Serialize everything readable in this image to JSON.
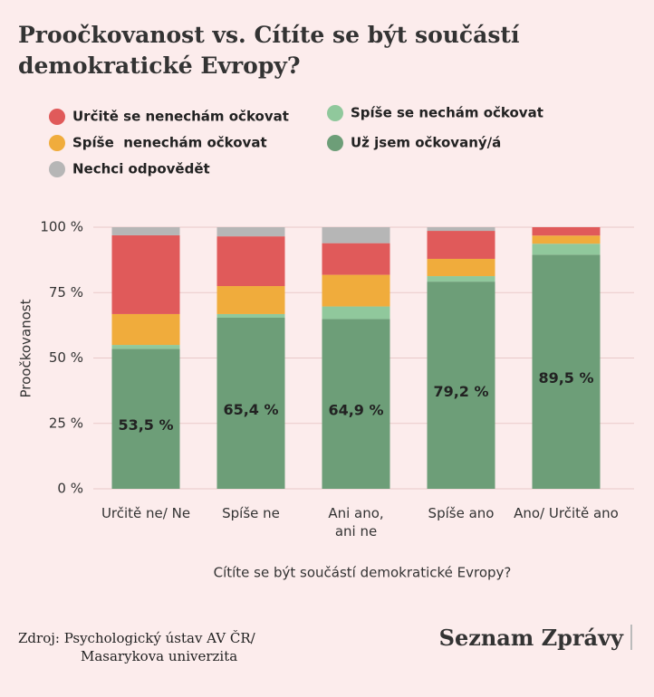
{
  "chart_data": {
    "type": "stacked_bar",
    "title_lines": [
      "Proočkovanost vs. Cítíte se být součástí",
      "demokratické Evropy?"
    ],
    "y_label": "Proočkovanost",
    "x_label": "Cítíte se být součástí demokratické Evropy?",
    "categories": [
      "Určitě ne/ Ne",
      "Spíše ne",
      "Ani ano,\nani ne",
      "Spíše ano",
      "Ano/ Určitě ano"
    ],
    "series": [
      {
        "name": "Už jsem očkovaný/á",
        "color": "#6d9e78",
        "values": [
          53.5,
          65.4,
          64.9,
          79.2,
          89.5
        ],
        "value_labels": [
          "53,5 %",
          "65,4 %",
          "64,9 %",
          "79,2 %",
          "89,5 %"
        ]
      },
      {
        "name": "Spíše se nechám očkovat",
        "color": "#90c89c",
        "values": [
          1.5,
          1.4,
          4.8,
          2.1,
          4.2
        ]
      },
      {
        "name": "Spíše  nenechám očkovat",
        "color": "#f0ac3c",
        "values": [
          11.8,
          10.7,
          12.1,
          6.6,
          3.1
        ]
      },
      {
        "name": "Určitě se nenechám očkovat",
        "color": "#e05a5a",
        "values": [
          30.1,
          19.0,
          12.1,
          10.7,
          3.2
        ]
      },
      {
        "name": "Nechci odpovědět",
        "color": "#b6b6b6",
        "values": [
          3.1,
          3.5,
          6.1,
          1.4,
          0
        ]
      }
    ],
    "ylim": [
      0,
      100
    ],
    "yticks": [
      {
        "value": 0,
        "label": "0 %"
      },
      {
        "value": 25,
        "label": "25 %"
      },
      {
        "value": 50,
        "label": "50 %"
      },
      {
        "value": 75,
        "label": "75 %"
      },
      {
        "value": 100,
        "label": "100 %"
      }
    ],
    "grid": true,
    "source_lines": [
      "Zdroj: Psychologický ústav AV ČR/",
      "Masarykova univerzita"
    ],
    "logo": "Seznam Zprávy"
  }
}
